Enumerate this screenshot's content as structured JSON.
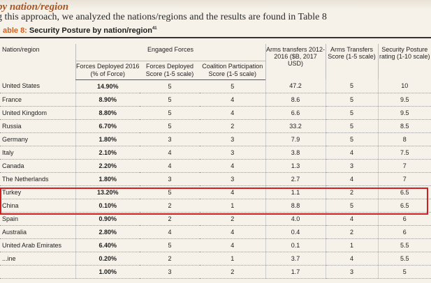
{
  "heading": {
    "section_title": "by nation/region",
    "intro_text": "g this approach, we analyzed the nations/regions and the results are found in Table 8",
    "caption_label": "able 8:",
    "caption_title": "Security Posture by nation/region",
    "caption_footnote": "41"
  },
  "table": {
    "headers": {
      "nation": "Nation/region",
      "engaged_forces": "Engaged Forces",
      "forces_deployed_pct": "Forces Deployed 2016 (% of Force)",
      "forces_deployed_score": "Forces Deployed Score (1-5 scale)",
      "coalition_score": "Coalition Participation Score (1-5 scale)",
      "arms_transfers": "Arms transfers 2012-2016 ($B, 2017 USD)",
      "arms_score": "Arms Transfers Score (1-5 scale)",
      "security_rating": "Security Posture rating (1-10 scale)"
    },
    "rows": [
      {
        "nation": "United States",
        "pct": "14.90%",
        "deployed_score": "5",
        "coalition": "5",
        "arms": "47.2",
        "arms_score": "5",
        "rating": "10"
      },
      {
        "nation": "France",
        "pct": "8.90%",
        "deployed_score": "5",
        "coalition": "4",
        "arms": "8.6",
        "arms_score": "5",
        "rating": "9.5"
      },
      {
        "nation": "United Kingdom",
        "pct": "8.80%",
        "deployed_score": "5",
        "coalition": "4",
        "arms": "6.6",
        "arms_score": "5",
        "rating": "9.5"
      },
      {
        "nation": "Russia",
        "pct": "6.70%",
        "deployed_score": "5",
        "coalition": "2",
        "arms": "33.2",
        "arms_score": "5",
        "rating": "8.5"
      },
      {
        "nation": "Germany",
        "pct": "1.80%",
        "deployed_score": "3",
        "coalition": "3",
        "arms": "7.9",
        "arms_score": "5",
        "rating": "8"
      },
      {
        "nation": "Italy",
        "pct": "2.10%",
        "deployed_score": "4",
        "coalition": "3",
        "arms": "3.8",
        "arms_score": "4",
        "rating": "7.5"
      },
      {
        "nation": "Canada",
        "pct": "2.20%",
        "deployed_score": "4",
        "coalition": "4",
        "arms": "1.3",
        "arms_score": "3",
        "rating": "7"
      },
      {
        "nation": "The Netherlands",
        "pct": "1.80%",
        "deployed_score": "3",
        "coalition": "3",
        "arms": "2.7",
        "arms_score": "4",
        "rating": "7"
      },
      {
        "nation": "Turkey",
        "pct": "13.20%",
        "deployed_score": "5",
        "coalition": "4",
        "arms": "1.1",
        "arms_score": "2",
        "rating": "6.5"
      },
      {
        "nation": "China",
        "pct": "0.10%",
        "deployed_score": "2",
        "coalition": "1",
        "arms": "8.8",
        "arms_score": "5",
        "rating": "6.5"
      },
      {
        "nation": "Spain",
        "pct": "0.90%",
        "deployed_score": "2",
        "coalition": "2",
        "arms": "4.0",
        "arms_score": "4",
        "rating": "6"
      },
      {
        "nation": "Australia",
        "pct": "2.80%",
        "deployed_score": "4",
        "coalition": "4",
        "arms": "0.4",
        "arms_score": "2",
        "rating": "6"
      },
      {
        "nation": "United Arab Emirates",
        "pct": "6.40%",
        "deployed_score": "5",
        "coalition": "4",
        "arms": "0.1",
        "arms_score": "1",
        "rating": "5.5"
      },
      {
        "nation": "...ine",
        "pct": "0.20%",
        "deployed_score": "2",
        "coalition": "1",
        "arms": "3.7",
        "arms_score": "4",
        "rating": "5.5"
      },
      {
        "nation": "",
        "pct": "1.00%",
        "deployed_score": "3",
        "coalition": "2",
        "arms": "1.7",
        "arms_score": "3",
        "rating": "5"
      }
    ]
  },
  "colors": {
    "accent_orange": "#b0541d",
    "highlight_red": "#d11f1f"
  }
}
